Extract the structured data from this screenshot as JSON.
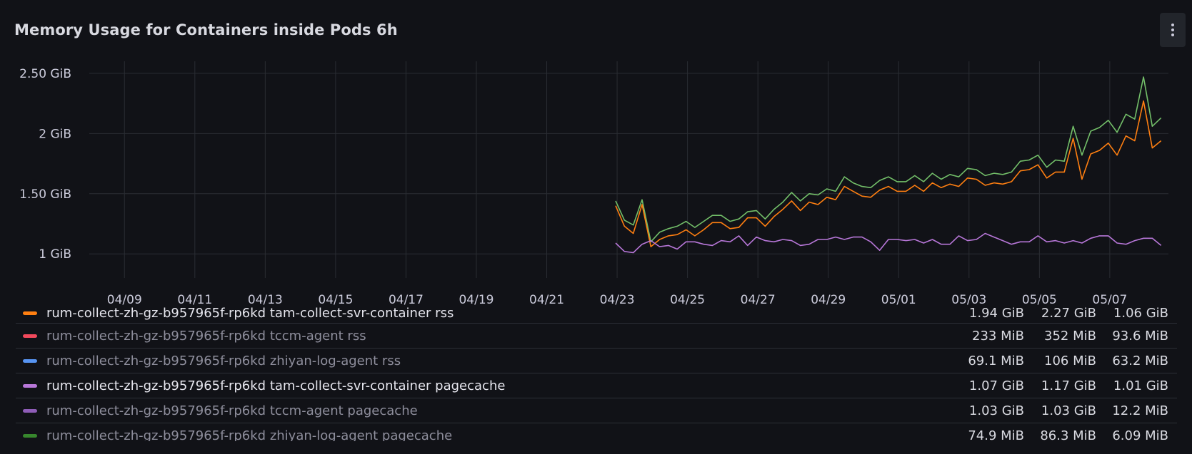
{
  "panel": {
    "title": "Memory Usage for Containers inside Pods 6h",
    "menu_icon": "vertical-ellipsis-icon"
  },
  "legend": [
    {
      "name": "rum-collect-zh-gz-b957965f-rp6kd tam-collect-svr-container rss",
      "color": "#ff7f11",
      "highlighted": true,
      "values": [
        "1.94 GiB",
        "2.27 GiB",
        "1.06 GiB"
      ]
    },
    {
      "name": "rum-collect-zh-gz-b957965f-rp6kd tccm-agent rss",
      "color": "#f2495c",
      "highlighted": false,
      "values": [
        "233 MiB",
        "352 MiB",
        "93.6 MiB"
      ]
    },
    {
      "name": "rum-collect-zh-gz-b957965f-rp6kd zhiyan-log-agent rss",
      "color": "#5794f2",
      "highlighted": false,
      "values": [
        "69.1 MiB",
        "106 MiB",
        "63.2 MiB"
      ]
    },
    {
      "name": "rum-collect-zh-gz-b957965f-rp6kd tam-collect-svr-container pagecache",
      "color": "#b877d9",
      "highlighted": true,
      "values": [
        "1.07 GiB",
        "1.17 GiB",
        "1.01 GiB"
      ]
    },
    {
      "name": "rum-collect-zh-gz-b957965f-rp6kd tccm-agent pagecache",
      "color": "#8f5db8",
      "highlighted": false,
      "values": [
        "1.03 GiB",
        "1.03 GiB",
        "12.2 MiB"
      ]
    },
    {
      "name": "rum-collect-zh-gz-b957965f-rp6kd zhiyan-log-agent pagecache",
      "color": "#37872d",
      "highlighted": false,
      "values": [
        "74.9 MiB",
        "86.3 MiB",
        "6.09 MiB"
      ]
    }
  ],
  "chart_data": {
    "type": "line",
    "title": "Memory Usage for Containers inside Pods 6h",
    "xlabel": "",
    "ylabel": "",
    "x_range": [
      "2024-04-08",
      "2024-05-08"
    ],
    "y_range_gib": [
      0.8,
      2.6
    ],
    "y_ticks": [
      {
        "value": 1.0,
        "label": "1 GiB"
      },
      {
        "value": 1.5,
        "label": "1.50 GiB"
      },
      {
        "value": 2.0,
        "label": "2 GiB"
      },
      {
        "value": 2.5,
        "label": "2.50 GiB"
      }
    ],
    "x_ticks": [
      "04/09",
      "04/11",
      "04/13",
      "04/15",
      "04/17",
      "04/19",
      "04/21",
      "04/23",
      "04/25",
      "04/27",
      "04/29",
      "05/01",
      "05/03",
      "05/05",
      "05/07"
    ],
    "x_tick_dates": [
      "2024-04-09",
      "2024-04-11",
      "2024-04-13",
      "2024-04-15",
      "2024-04-17",
      "2024-04-19",
      "2024-04-21",
      "2024-04-23",
      "2024-04-25",
      "2024-04-27",
      "2024-04-29",
      "2024-05-01",
      "2024-05-03",
      "2024-05-05",
      "2024-05-07"
    ],
    "grid": true,
    "legend_position": "bottom",
    "series": [
      {
        "color": "#73bf69",
        "points": [
          [
            "2024-04-22 23:00",
            1.44
          ],
          [
            "2024-04-23 05:00",
            1.28
          ],
          [
            "2024-04-23 11:00",
            1.24
          ],
          [
            "2024-04-23 17:00",
            1.45
          ],
          [
            "2024-04-23 23:00",
            1.1
          ],
          [
            "2024-04-24 05:00",
            1.18
          ],
          [
            "2024-04-24 11:00",
            1.21
          ],
          [
            "2024-04-24 17:00",
            1.23
          ],
          [
            "2024-04-24 23:00",
            1.27
          ],
          [
            "2024-04-25 05:00",
            1.22
          ],
          [
            "2024-04-25 11:00",
            1.27
          ],
          [
            "2024-04-25 17:00",
            1.32
          ],
          [
            "2024-04-25 23:00",
            1.32
          ],
          [
            "2024-04-26 05:00",
            1.27
          ],
          [
            "2024-04-26 11:00",
            1.29
          ],
          [
            "2024-04-26 17:00",
            1.35
          ],
          [
            "2024-04-26 23:00",
            1.36
          ],
          [
            "2024-04-27 05:00",
            1.29
          ],
          [
            "2024-04-27 11:00",
            1.37
          ],
          [
            "2024-04-27 17:00",
            1.43
          ],
          [
            "2024-04-27 23:00",
            1.51
          ],
          [
            "2024-04-28 05:00",
            1.44
          ],
          [
            "2024-04-28 11:00",
            1.5
          ],
          [
            "2024-04-28 17:00",
            1.49
          ],
          [
            "2024-04-28 23:00",
            1.54
          ],
          [
            "2024-04-29 05:00",
            1.52
          ],
          [
            "2024-04-29 11:00",
            1.64
          ],
          [
            "2024-04-29 17:00",
            1.59
          ],
          [
            "2024-04-29 23:00",
            1.56
          ],
          [
            "2024-04-30 05:00",
            1.55
          ],
          [
            "2024-04-30 11:00",
            1.61
          ],
          [
            "2024-04-30 17:00",
            1.64
          ],
          [
            "2024-04-30 23:00",
            1.6
          ],
          [
            "2024-05-01 05:00",
            1.6
          ],
          [
            "2024-05-01 11:00",
            1.65
          ],
          [
            "2024-05-01 17:00",
            1.6
          ],
          [
            "2024-05-01 23:00",
            1.67
          ],
          [
            "2024-05-02 05:00",
            1.62
          ],
          [
            "2024-05-02 11:00",
            1.66
          ],
          [
            "2024-05-02 17:00",
            1.64
          ],
          [
            "2024-05-02 23:00",
            1.71
          ],
          [
            "2024-05-03 05:00",
            1.7
          ],
          [
            "2024-05-03 11:00",
            1.65
          ],
          [
            "2024-05-03 17:00",
            1.67
          ],
          [
            "2024-05-03 23:00",
            1.66
          ],
          [
            "2024-05-04 05:00",
            1.68
          ],
          [
            "2024-05-04 11:00",
            1.77
          ],
          [
            "2024-05-04 17:00",
            1.78
          ],
          [
            "2024-05-04 23:00",
            1.82
          ],
          [
            "2024-05-05 05:00",
            1.72
          ],
          [
            "2024-05-05 11:00",
            1.78
          ],
          [
            "2024-05-05 17:00",
            1.77
          ],
          [
            "2024-05-05 23:00",
            2.06
          ],
          [
            "2024-05-06 05:00",
            1.82
          ],
          [
            "2024-05-06 11:00",
            2.02
          ],
          [
            "2024-05-06 17:00",
            2.05
          ],
          [
            "2024-05-06 23:00",
            2.11
          ],
          [
            "2024-05-07 05:00",
            2.01
          ],
          [
            "2024-05-07 11:00",
            2.16
          ],
          [
            "2024-05-07 17:00",
            2.12
          ],
          [
            "2024-05-07 23:00",
            2.47
          ],
          [
            "2024-05-08 05:00",
            2.06
          ],
          [
            "2024-05-08 11:00",
            2.13
          ]
        ]
      },
      {
        "color": "#ff7f11",
        "points": [
          [
            "2024-04-22 23:00",
            1.4
          ],
          [
            "2024-04-23 05:00",
            1.23
          ],
          [
            "2024-04-23 11:00",
            1.17
          ],
          [
            "2024-04-23 17:00",
            1.41
          ],
          [
            "2024-04-23 23:00",
            1.06
          ],
          [
            "2024-04-24 05:00",
            1.12
          ],
          [
            "2024-04-24 11:00",
            1.15
          ],
          [
            "2024-04-24 17:00",
            1.16
          ],
          [
            "2024-04-24 23:00",
            1.2
          ],
          [
            "2024-04-25 05:00",
            1.15
          ],
          [
            "2024-04-25 11:00",
            1.2
          ],
          [
            "2024-04-25 17:00",
            1.26
          ],
          [
            "2024-04-25 23:00",
            1.26
          ],
          [
            "2024-04-26 05:00",
            1.21
          ],
          [
            "2024-04-26 11:00",
            1.22
          ],
          [
            "2024-04-26 17:00",
            1.3
          ],
          [
            "2024-04-26 23:00",
            1.3
          ],
          [
            "2024-04-27 05:00",
            1.23
          ],
          [
            "2024-04-27 11:00",
            1.31
          ],
          [
            "2024-04-27 17:00",
            1.37
          ],
          [
            "2024-04-27 23:00",
            1.44
          ],
          [
            "2024-04-28 05:00",
            1.36
          ],
          [
            "2024-04-28 11:00",
            1.43
          ],
          [
            "2024-04-28 17:00",
            1.41
          ],
          [
            "2024-04-28 23:00",
            1.47
          ],
          [
            "2024-04-29 05:00",
            1.45
          ],
          [
            "2024-04-29 11:00",
            1.56
          ],
          [
            "2024-04-29 17:00",
            1.52
          ],
          [
            "2024-04-29 23:00",
            1.48
          ],
          [
            "2024-04-30 05:00",
            1.47
          ],
          [
            "2024-04-30 11:00",
            1.53
          ],
          [
            "2024-04-30 17:00",
            1.56
          ],
          [
            "2024-04-30 23:00",
            1.52
          ],
          [
            "2024-05-01 05:00",
            1.52
          ],
          [
            "2024-05-01 11:00",
            1.57
          ],
          [
            "2024-05-01 17:00",
            1.52
          ],
          [
            "2024-05-01 23:00",
            1.59
          ],
          [
            "2024-05-02 05:00",
            1.55
          ],
          [
            "2024-05-02 11:00",
            1.58
          ],
          [
            "2024-05-02 17:00",
            1.56
          ],
          [
            "2024-05-02 23:00",
            1.63
          ],
          [
            "2024-05-03 05:00",
            1.62
          ],
          [
            "2024-05-03 11:00",
            1.57
          ],
          [
            "2024-05-03 17:00",
            1.59
          ],
          [
            "2024-05-03 23:00",
            1.58
          ],
          [
            "2024-05-04 05:00",
            1.6
          ],
          [
            "2024-05-04 11:00",
            1.69
          ],
          [
            "2024-05-04 17:00",
            1.7
          ],
          [
            "2024-05-04 23:00",
            1.74
          ],
          [
            "2024-05-05 05:00",
            1.63
          ],
          [
            "2024-05-05 11:00",
            1.68
          ],
          [
            "2024-05-05 17:00",
            1.68
          ],
          [
            "2024-05-05 23:00",
            1.96
          ],
          [
            "2024-05-06 05:00",
            1.62
          ],
          [
            "2024-05-06 11:00",
            1.83
          ],
          [
            "2024-05-06 17:00",
            1.86
          ],
          [
            "2024-05-06 23:00",
            1.92
          ],
          [
            "2024-05-07 05:00",
            1.82
          ],
          [
            "2024-05-07 11:00",
            1.98
          ],
          [
            "2024-05-07 17:00",
            1.94
          ],
          [
            "2024-05-07 23:00",
            2.27
          ],
          [
            "2024-05-08 05:00",
            1.88
          ],
          [
            "2024-05-08 11:00",
            1.94
          ]
        ]
      },
      {
        "color": "#b877d9",
        "points": [
          [
            "2024-04-22 23:00",
            1.09
          ],
          [
            "2024-04-23 05:00",
            1.02
          ],
          [
            "2024-04-23 11:00",
            1.01
          ],
          [
            "2024-04-23 17:00",
            1.08
          ],
          [
            "2024-04-23 23:00",
            1.11
          ],
          [
            "2024-04-24 05:00",
            1.06
          ],
          [
            "2024-04-24 11:00",
            1.07
          ],
          [
            "2024-04-24 17:00",
            1.04
          ],
          [
            "2024-04-24 23:00",
            1.1
          ],
          [
            "2024-04-25 05:00",
            1.1
          ],
          [
            "2024-04-25 11:00",
            1.08
          ],
          [
            "2024-04-25 17:00",
            1.07
          ],
          [
            "2024-04-25 23:00",
            1.11
          ],
          [
            "2024-04-26 05:00",
            1.1
          ],
          [
            "2024-04-26 11:00",
            1.15
          ],
          [
            "2024-04-26 17:00",
            1.07
          ],
          [
            "2024-04-26 23:00",
            1.14
          ],
          [
            "2024-04-27 05:00",
            1.11
          ],
          [
            "2024-04-27 11:00",
            1.1
          ],
          [
            "2024-04-27 17:00",
            1.12
          ],
          [
            "2024-04-27 23:00",
            1.11
          ],
          [
            "2024-04-28 05:00",
            1.07
          ],
          [
            "2024-04-28 11:00",
            1.08
          ],
          [
            "2024-04-28 17:00",
            1.12
          ],
          [
            "2024-04-28 23:00",
            1.12
          ],
          [
            "2024-04-29 05:00",
            1.14
          ],
          [
            "2024-04-29 11:00",
            1.12
          ],
          [
            "2024-04-29 17:00",
            1.14
          ],
          [
            "2024-04-29 23:00",
            1.14
          ],
          [
            "2024-04-30 05:00",
            1.1
          ],
          [
            "2024-04-30 11:00",
            1.03
          ],
          [
            "2024-04-30 17:00",
            1.12
          ],
          [
            "2024-04-30 23:00",
            1.12
          ],
          [
            "2024-05-01 05:00",
            1.11
          ],
          [
            "2024-05-01 11:00",
            1.12
          ],
          [
            "2024-05-01 17:00",
            1.09
          ],
          [
            "2024-05-01 23:00",
            1.12
          ],
          [
            "2024-05-02 05:00",
            1.08
          ],
          [
            "2024-05-02 11:00",
            1.08
          ],
          [
            "2024-05-02 17:00",
            1.15
          ],
          [
            "2024-05-02 23:00",
            1.11
          ],
          [
            "2024-05-03 05:00",
            1.12
          ],
          [
            "2024-05-03 11:00",
            1.17
          ],
          [
            "2024-05-03 17:00",
            1.14
          ],
          [
            "2024-05-03 23:00",
            1.11
          ],
          [
            "2024-05-04 05:00",
            1.08
          ],
          [
            "2024-05-04 11:00",
            1.1
          ],
          [
            "2024-05-04 17:00",
            1.1
          ],
          [
            "2024-05-04 23:00",
            1.15
          ],
          [
            "2024-05-05 05:00",
            1.1
          ],
          [
            "2024-05-05 11:00",
            1.11
          ],
          [
            "2024-05-05 17:00",
            1.09
          ],
          [
            "2024-05-05 23:00",
            1.11
          ],
          [
            "2024-05-06 05:00",
            1.09
          ],
          [
            "2024-05-06 11:00",
            1.13
          ],
          [
            "2024-05-06 17:00",
            1.15
          ],
          [
            "2024-05-06 23:00",
            1.15
          ],
          [
            "2024-05-07 05:00",
            1.09
          ],
          [
            "2024-05-07 11:00",
            1.08
          ],
          [
            "2024-05-07 17:00",
            1.11
          ],
          [
            "2024-05-07 23:00",
            1.13
          ],
          [
            "2024-05-08 05:00",
            1.13
          ],
          [
            "2024-05-08 11:00",
            1.07
          ]
        ]
      }
    ]
  }
}
